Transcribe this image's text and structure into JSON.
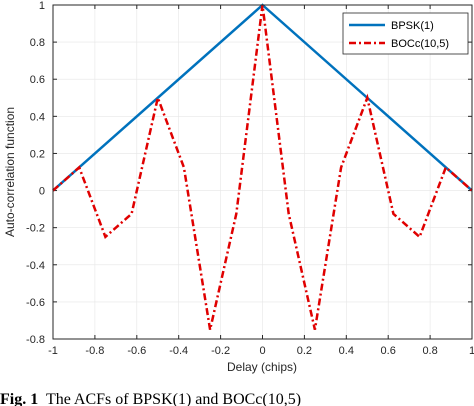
{
  "chart_data": {
    "type": "line",
    "xlabel": "Delay (chips)",
    "ylabel": "Auto-correlation function",
    "xlim": [
      -1,
      1
    ],
    "ylim": [
      -0.8,
      1
    ],
    "xticks": [
      "-1",
      "-0.8",
      "-0.6",
      "-0.4",
      "-0.2",
      "0",
      "0.2",
      "0.4",
      "0.6",
      "0.8",
      "1"
    ],
    "yticks": [
      "-0.8",
      "-0.6",
      "-0.4",
      "-0.2",
      "0",
      "0.2",
      "0.4",
      "0.6",
      "0.8",
      "1"
    ],
    "legend_position": "top-right",
    "series": [
      {
        "name": "BPSK(1)",
        "color": "#0072BD",
        "style": "solid",
        "x": [
          -1,
          0,
          1
        ],
        "y": [
          0,
          1,
          0
        ]
      },
      {
        "name": "BOCc(10,5)",
        "color": "#E00000",
        "style": "dashdot",
        "x": [
          -1,
          -0.875,
          -0.75,
          -0.625,
          -0.5,
          -0.375,
          -0.25,
          -0.125,
          0,
          0.125,
          0.25,
          0.375,
          0.5,
          0.625,
          0.75,
          0.875,
          1
        ],
        "y": [
          0,
          0.125,
          -0.25,
          -0.125,
          0.5,
          0.125,
          -0.75,
          -0.125,
          1,
          -0.125,
          -0.75,
          0.125,
          0.5,
          -0.125,
          -0.25,
          0.125,
          0
        ]
      }
    ]
  },
  "caption": {
    "label": "Fig. 1",
    "text": "The ACFs of BPSK(1) and BOCc(10,5)"
  }
}
